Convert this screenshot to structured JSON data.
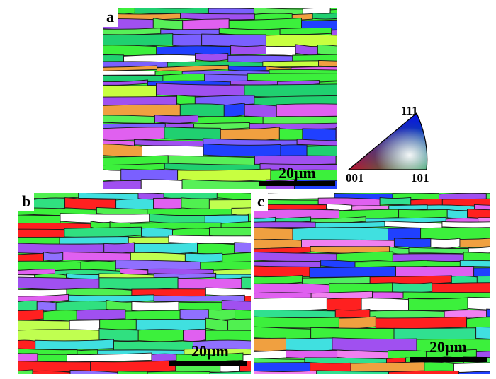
{
  "panels": [
    {
      "id": "a",
      "label": "a",
      "scalebar": "20μm",
      "seed": 11,
      "bias": "green-purple"
    },
    {
      "id": "b",
      "label": "b",
      "scalebar": "20μm",
      "seed": 37,
      "bias": "green-red"
    },
    {
      "id": "c",
      "label": "c",
      "scalebar": "20μm",
      "seed": 73,
      "bias": "green-pink"
    }
  ],
  "ipf_key": {
    "corner_001": "001",
    "corner_101": "101",
    "corner_111": "111"
  },
  "colors": {
    "dominant_green": "#3cf03c",
    "purple": "#a050f0",
    "magenta": "#e060f0",
    "red": "#ff2020",
    "blue": "#2040ff",
    "cyan": "#40e0e0",
    "grain_boundary": "#1a1a1a"
  }
}
